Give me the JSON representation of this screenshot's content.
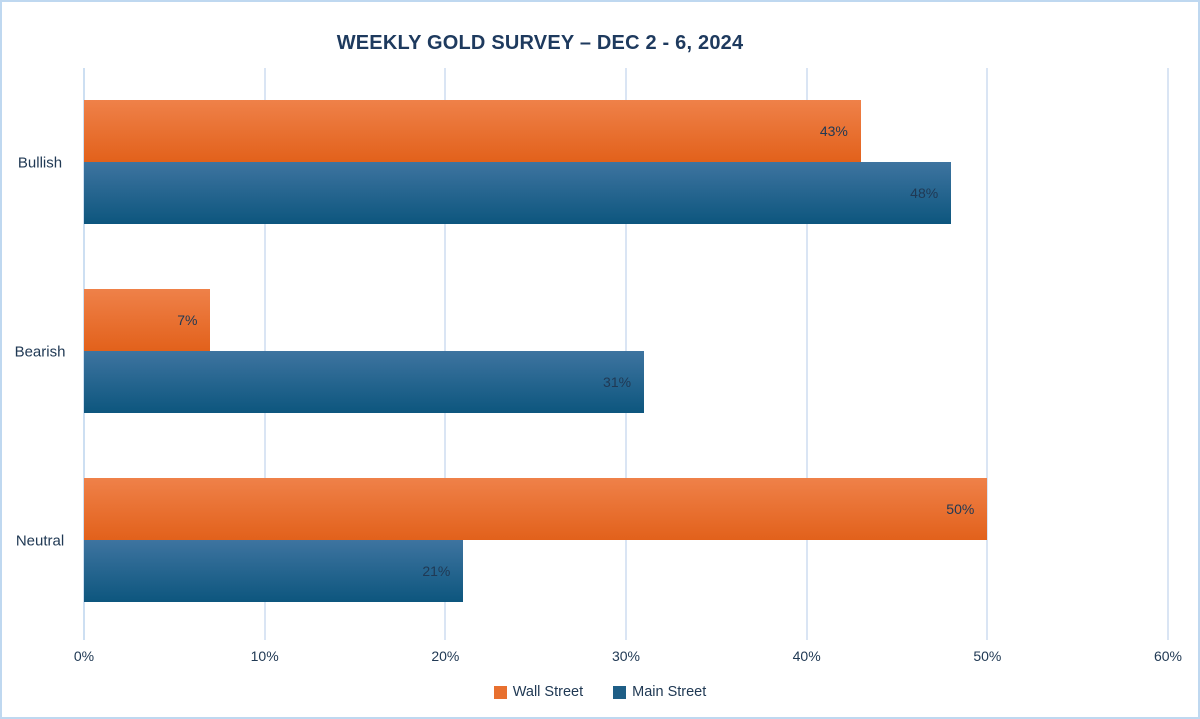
{
  "chart_data": {
    "type": "bar",
    "orientation": "horizontal",
    "title": "WEEKLY GOLD SURVEY – DEC 2 - 6, 2024",
    "categories": [
      "Bullish",
      "Bearish",
      "Neutral"
    ],
    "series": [
      {
        "name": "Wall Street",
        "values": [
          43,
          7,
          50
        ],
        "color_top": "#EF8149",
        "color_bottom": "#E2611B",
        "legend_color": "#E8702F"
      },
      {
        "name": "Main Street",
        "values": [
          48,
          31,
          21
        ],
        "color_top": "#3E74A0",
        "color_bottom": "#0D567E",
        "legend_color": "#1E5E86"
      }
    ],
    "value_suffix": "%",
    "xlim": [
      0,
      60
    ],
    "x_ticks": [
      "0%",
      "10%",
      "20%",
      "30%",
      "40%",
      "50%",
      "60%"
    ],
    "grid": true,
    "data_labels": "inside-end",
    "legend_position": "bottom"
  },
  "colors": {
    "background": "#FFFFFF",
    "frame_border": "#BFD8F0",
    "gridline": "#DAE5F4",
    "axis_line": "#CDDFF2",
    "text": "#203954",
    "title_text": "#1E3A5E"
  }
}
